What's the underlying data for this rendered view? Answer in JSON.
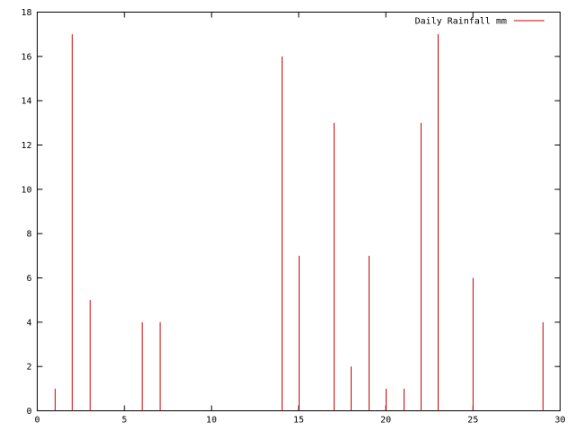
{
  "chart_data": {
    "type": "bar",
    "style": "impulses",
    "legend_position": "top-right",
    "grid": false,
    "series": [
      {
        "name": "Daily Rainfall mm",
        "color": "#cc0000",
        "x": [
          1,
          2,
          3,
          6,
          7,
          14,
          15,
          17,
          18,
          19,
          20,
          21,
          22,
          23,
          25,
          29
        ],
        "values": [
          1,
          17,
          5,
          4,
          4,
          16,
          7,
          13,
          2,
          7,
          1,
          1,
          13,
          17,
          6,
          4
        ]
      }
    ],
    "xlim": [
      0,
      30
    ],
    "ylim": [
      0,
      18
    ],
    "xticks": [
      0,
      5,
      10,
      15,
      20,
      25,
      30
    ],
    "yticks": [
      0,
      2,
      4,
      6,
      8,
      10,
      12,
      14,
      16,
      18
    ]
  }
}
